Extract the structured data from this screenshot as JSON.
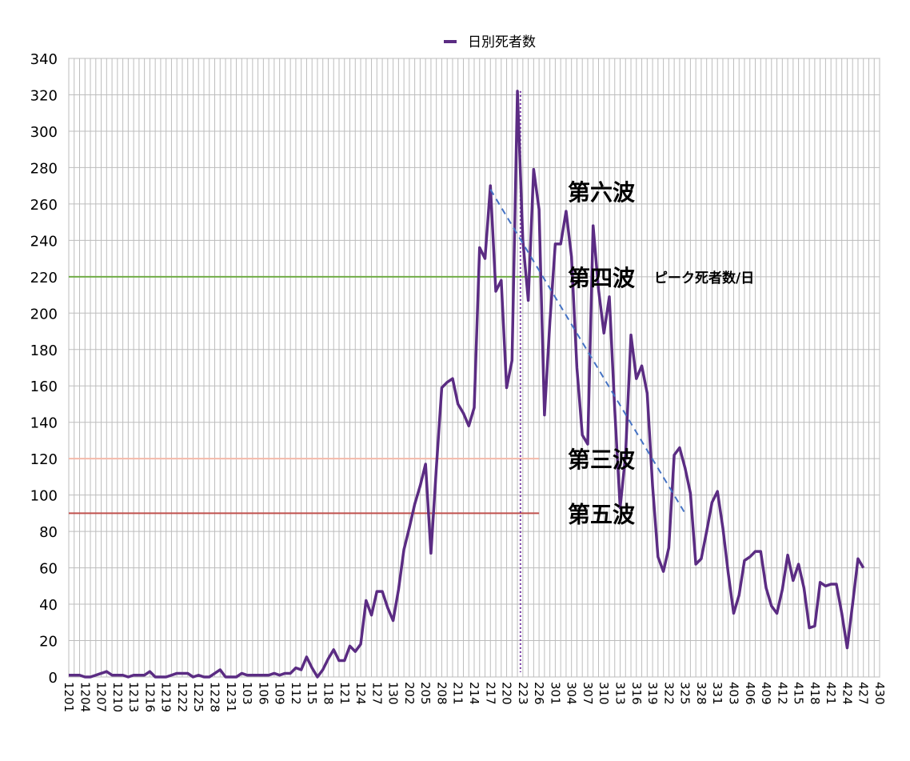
{
  "chart_data": {
    "type": "line",
    "categories": [
      "1201",
      null,
      null,
      "1204",
      null,
      null,
      "1207",
      null,
      null,
      "1210",
      null,
      null,
      "1213",
      null,
      null,
      "1216",
      null,
      null,
      "1219",
      null,
      null,
      "1222",
      null,
      null,
      "1225",
      null,
      null,
      "1228",
      null,
      null,
      "1231",
      null,
      null,
      "103",
      null,
      null,
      "106",
      null,
      null,
      "109",
      null,
      null,
      "112",
      null,
      null,
      "115",
      null,
      null,
      "118",
      null,
      null,
      "121",
      null,
      null,
      "124",
      null,
      null,
      "127",
      null,
      null,
      "130",
      null,
      null,
      "202",
      null,
      null,
      "205",
      null,
      null,
      "208",
      null,
      null,
      "211",
      null,
      null,
      "214",
      null,
      null,
      "217",
      null,
      null,
      "220",
      null,
      null,
      "223",
      null,
      null,
      "226",
      null,
      null,
      "301",
      null,
      null,
      "304",
      null,
      null,
      "307",
      null,
      null,
      "310",
      null,
      null,
      "313",
      null,
      null,
      "316",
      null,
      null,
      "319",
      null,
      null,
      "322",
      null,
      null,
      "325",
      null,
      null,
      "328",
      null,
      null,
      "331",
      null,
      null,
      "403",
      null,
      null,
      "406",
      null,
      null,
      "409",
      null,
      null,
      "412",
      null,
      null,
      "415",
      null,
      null,
      "418",
      null,
      null,
      "421",
      null,
      null,
      "424",
      null,
      null,
      "427",
      null,
      null,
      "430"
    ],
    "series": [
      {
        "name": "日別死者数",
        "color": "#5b2c83",
        "values": [
          1,
          1,
          1,
          0,
          0,
          1,
          2,
          3,
          1,
          1,
          1,
          0,
          1,
          1,
          1,
          3,
          0,
          0,
          0,
          1,
          2,
          2,
          2,
          0,
          1,
          0,
          0,
          2,
          4,
          0,
          0,
          0,
          2,
          1,
          1,
          1,
          1,
          1,
          2,
          1,
          2,
          2,
          5,
          4,
          11,
          5,
          0,
          4,
          10,
          15,
          9,
          9,
          17,
          14,
          18,
          42,
          34,
          47,
          47,
          38,
          31,
          48,
          70,
          82,
          95,
          105,
          117,
          68,
          115,
          159,
          162,
          164,
          150,
          145,
          138,
          148,
          236,
          230,
          270,
          212,
          218,
          159,
          174,
          322,
          240,
          207,
          279,
          257,
          144,
          195,
          238,
          238,
          256,
          231,
          170,
          133,
          128,
          248,
          213,
          189,
          209,
          147,
          93,
          122,
          188,
          164,
          171,
          156,
          105,
          66,
          58,
          71,
          122,
          126,
          115,
          101,
          62,
          65,
          80,
          96,
          102,
          82,
          57,
          35,
          45,
          64,
          66,
          69,
          69,
          49,
          39,
          35,
          48,
          67,
          53,
          62,
          49,
          27,
          28,
          52,
          50,
          51,
          51,
          35,
          16,
          40,
          65,
          60,
          null,
          null,
          null
        ]
      }
    ],
    "ylim": [
      0,
      340
    ],
    "yticks": [
      0,
      20,
      40,
      60,
      80,
      100,
      120,
      140,
      160,
      180,
      200,
      220,
      240,
      260,
      280,
      300,
      320,
      340
    ],
    "grid": true,
    "legend": "top",
    "reference_lines": [
      {
        "label": "第四波",
        "value": 220,
        "color": "#70ad47",
        "label_color": "#70ad47"
      },
      {
        "label": "第三波",
        "value": 120,
        "color": "#f4b9aa",
        "label_color": "#f5b041"
      },
      {
        "label": "第五波",
        "value": 90,
        "color": "#c0504d",
        "label_color": "#e8735a"
      }
    ],
    "reference_end": "226",
    "peak_note": "ピーク死者数/日",
    "annotation": {
      "text": "第六波",
      "color": "#5b2c83"
    },
    "marker_x": "223",
    "marker_color": "#7030a0",
    "trend": {
      "x": [
        "217",
        "325"
      ],
      "values": [
        268,
        90
      ],
      "color": "#4472c4"
    }
  }
}
